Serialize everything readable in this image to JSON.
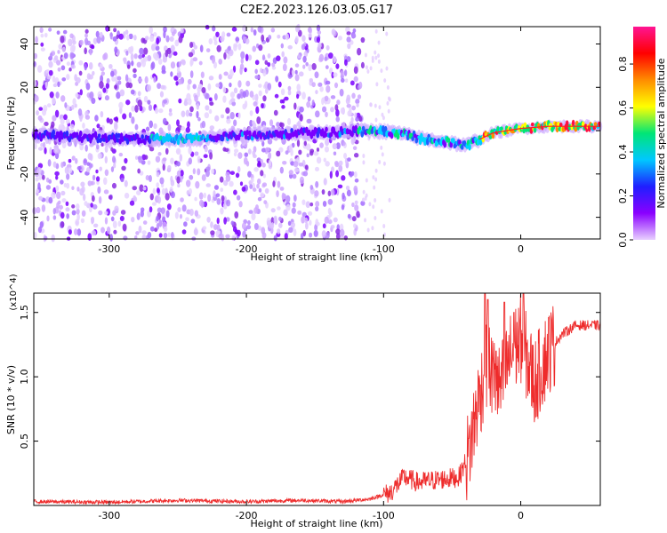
{
  "title": "C2E2.2023.126.03.05.G17",
  "colors": {
    "snr_line": "#ee2c2c",
    "axis": "#000000",
    "spectrogram_background": "#ffffff",
    "colorbar_stops": [
      "#e8d0ff",
      "#8a00ff",
      "#1f1fff",
      "#00c8ff",
      "#00e676",
      "#ffff00",
      "#ff8c00",
      "#ff0000",
      "#ff1493"
    ]
  },
  "chart_data": [
    {
      "type": "heatmap",
      "name": "spectrogram",
      "xlabel": "Height of straight line (km)",
      "ylabel": "Frequency (Hz)",
      "xlim": [
        -355,
        58
      ],
      "ylim": [
        -50,
        48
      ],
      "xticks": [
        -300,
        -200,
        -100,
        0
      ],
      "yticks": [
        -40,
        -20,
        0,
        20,
        40
      ],
      "colorbar": {
        "label": "Normalized spectral amplitude",
        "range": [
          0.0,
          0.97
        ],
        "ticks": [
          0.0,
          0.2,
          0.4,
          0.6,
          0.8
        ]
      },
      "features": {
        "noise_region_x": [
          -355,
          -115
        ],
        "signal_band_center_hz": [
          [
            -355,
            -2
          ],
          [
            -265,
            -4
          ],
          [
            -240,
            -4
          ],
          [
            -200,
            -2
          ],
          [
            -150,
            -1
          ],
          [
            -110,
            0
          ],
          [
            -90,
            -1
          ],
          [
            -70,
            -4
          ],
          [
            -55,
            -5
          ],
          [
            -40,
            -7
          ],
          [
            -20,
            -1
          ],
          [
            0,
            1
          ],
          [
            20,
            2
          ],
          [
            58,
            2
          ]
        ],
        "strong_signal_x": [
          -30,
          58
        ]
      }
    },
    {
      "type": "line",
      "name": "snr",
      "xlabel": "Height of straight line (km)",
      "ylabel": "SNR (10 * v/v)",
      "y_multiplier": "(x10^4)",
      "xlim": [
        -355,
        58
      ],
      "ylim": [
        0,
        1.65
      ],
      "xticks": [
        -300,
        -200,
        -100,
        0
      ],
      "yticks": [
        0.5,
        1.0,
        1.5
      ],
      "ytick_labels": [
        "0.5",
        "1.0",
        "1.5"
      ],
      "envelope": [
        [
          -355,
          0.03
        ],
        [
          -300,
          0.025
        ],
        [
          -250,
          0.04
        ],
        [
          -200,
          0.03
        ],
        [
          -160,
          0.04
        ],
        [
          -130,
          0.03
        ],
        [
          -110,
          0.05
        ],
        [
          -95,
          0.1
        ],
        [
          -85,
          0.22
        ],
        [
          -75,
          0.18
        ],
        [
          -60,
          0.2
        ],
        [
          -45,
          0.22
        ],
        [
          -38,
          0.4
        ],
        [
          -32,
          0.75
        ],
        [
          -25,
          1.1
        ],
        [
          -15,
          0.9
        ],
        [
          -8,
          1.15
        ],
        [
          0,
          1.3
        ],
        [
          10,
          0.95
        ],
        [
          20,
          1.2
        ],
        [
          30,
          1.33
        ],
        [
          40,
          1.4
        ],
        [
          58,
          1.4
        ]
      ],
      "peaks": [
        [
          -26,
          1.65
        ],
        [
          -24,
          1.6
        ],
        [
          -18,
          1.2
        ],
        [
          -12,
          1.58
        ],
        [
          -5,
          1.5
        ],
        [
          2,
          1.65
        ]
      ]
    }
  ]
}
